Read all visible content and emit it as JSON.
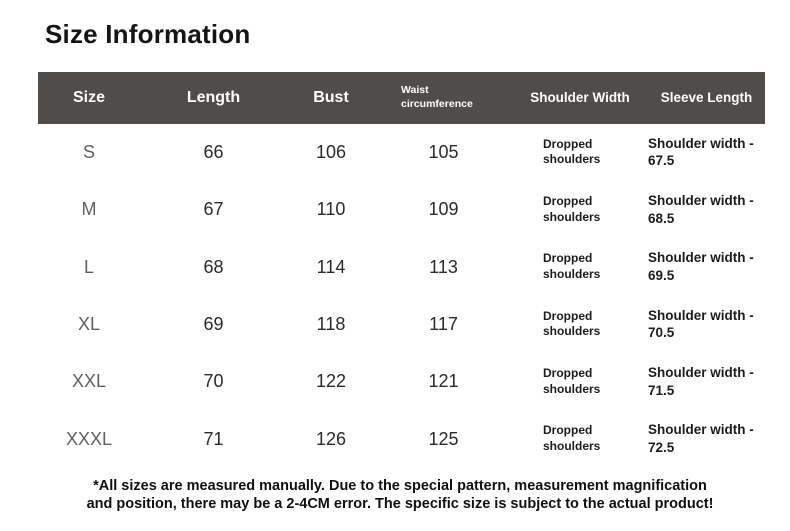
{
  "page": {
    "title": "Size Information"
  },
  "colors": {
    "header_bg": "#504c4a",
    "header_text": "#ffffff",
    "title_text": "#141414",
    "number_text": "#2a2a2a",
    "size_label_text": "#5f5f5f",
    "note_text": "#101010"
  },
  "table": {
    "columns": [
      {
        "key": "size",
        "label": "Size"
      },
      {
        "key": "length",
        "label": "Length"
      },
      {
        "key": "bust",
        "label": "Bust"
      },
      {
        "key": "waist",
        "label": "Waist circumference"
      },
      {
        "key": "shoulder",
        "label": "Shoulder Width"
      },
      {
        "key": "sleeve",
        "label": "Sleeve Length"
      }
    ],
    "rows": [
      {
        "size": "S",
        "length": "66",
        "bust": "106",
        "waist": "105",
        "shoulder": "Dropped shoulders",
        "sleeve": "Shoulder width - 67.5"
      },
      {
        "size": "M",
        "length": "67",
        "bust": "110",
        "waist": "109",
        "shoulder": "Dropped shoulders",
        "sleeve": "Shoulder width - 68.5"
      },
      {
        "size": "L",
        "length": "68",
        "bust": "114",
        "waist": "113",
        "shoulder": "Dropped shoulders",
        "sleeve": "Shoulder width - 69.5"
      },
      {
        "size": "XL",
        "length": "69",
        "bust": "118",
        "waist": "117",
        "shoulder": "Dropped shoulders",
        "sleeve": "Shoulder width - 70.5"
      },
      {
        "size": "XXL",
        "length": "70",
        "bust": "122",
        "waist": "121",
        "shoulder": "Dropped shoulders",
        "sleeve": "Shoulder width - 71.5"
      },
      {
        "size": "XXXL",
        "length": "71",
        "bust": "126",
        "waist": "125",
        "shoulder": "Dropped shoulders",
        "sleeve": "Shoulder width - 72.5"
      }
    ]
  },
  "footer": {
    "note_lines": [
      "*All sizes are measured manually. Due to the special pattern, measurement magnification",
      "and position, there may be a 2-4CM error. The specific size is subject to the actual product!"
    ]
  }
}
